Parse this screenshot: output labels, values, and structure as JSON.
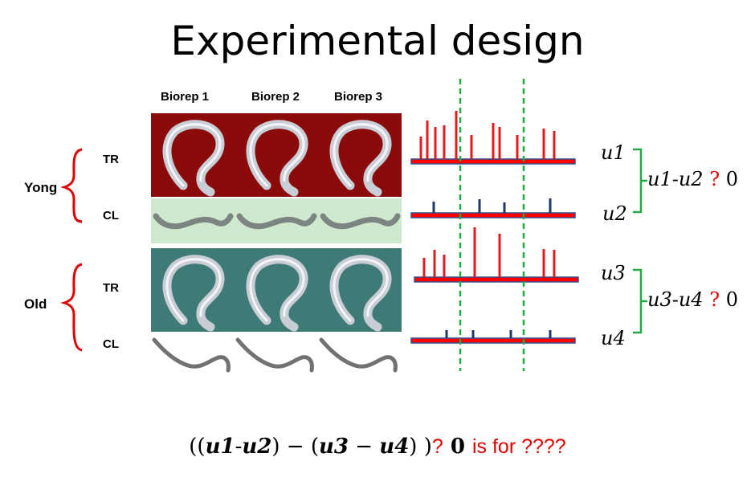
{
  "title": "Experimental design",
  "columns": [
    "Biorep 1",
    "Biorep 2",
    "Biorep 3"
  ],
  "groups": [
    {
      "label": "Yong",
      "rows": [
        "TR",
        "CL"
      ]
    },
    {
      "label": "Old",
      "rows": [
        "TR",
        "CL"
      ]
    }
  ],
  "tracks": [
    {
      "mean_label": "u1",
      "peaks": [
        28,
        48,
        40,
        42,
        60,
        30,
        45,
        40,
        30,
        38,
        35
      ]
    },
    {
      "mean_label": "u2",
      "peaks": [
        14,
        17,
        13,
        18
      ]
    },
    {
      "mean_label": "u3",
      "peaks": [
        24,
        34,
        28,
        62,
        54,
        35,
        34
      ]
    },
    {
      "mean_label": "u4",
      "peaks": [
        10,
        10,
        10,
        10
      ]
    }
  ],
  "comparisons": [
    {
      "left": "u1",
      "sep": "-",
      "right": "u2",
      "op": "?",
      "value": "0"
    },
    {
      "left": "u3",
      "sep": "-",
      "right": "u4",
      "op": "?",
      "value": "0"
    }
  ],
  "formula": {
    "open": "((",
    "a": "u1",
    "dash1": "-",
    "b": "u2",
    "mid": ")  − (",
    "c": "u3",
    "minus": " − ",
    "d": "u4",
    "close": ") )",
    "q": "?",
    "zero": " 0 ",
    "tail": "is for ????"
  },
  "colors": {
    "peak": "#e41a1c",
    "baseline_red": "#ff0000",
    "baseline_blue": "#33508a",
    "dark_peak": "#1f3866",
    "dashed": "#22aa44",
    "brace_red": "#e00000",
    "brace_green": "#22aa44",
    "tr_young_bg": "#8b0a0a",
    "cl_young_bg": "#cfe9cf",
    "tr_old_bg": "#3f7b76",
    "cl_old_bg": "#ffffff"
  }
}
